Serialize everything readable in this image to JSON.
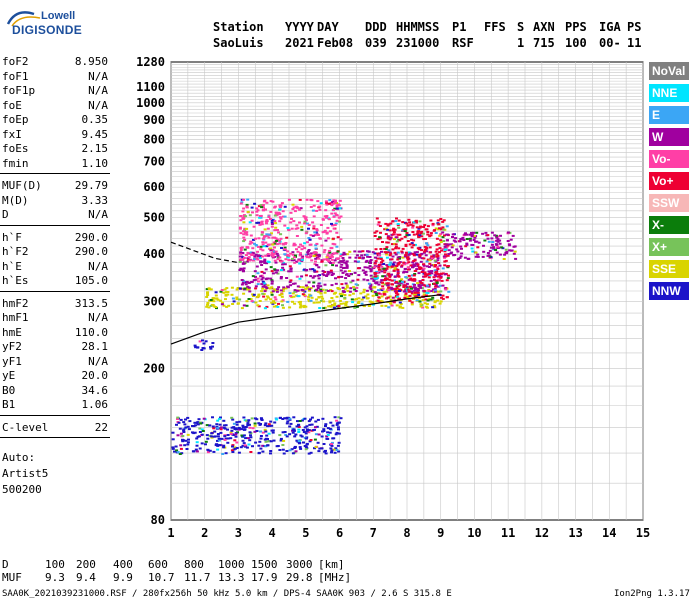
{
  "logo": {
    "line1": "Lowell",
    "line2": "DIGISONDE"
  },
  "header": {
    "labels": [
      "Station",
      "YYYY",
      "DAY",
      "DDD",
      "HHMMSS",
      "P1",
      "FFS",
      "S",
      "AXN",
      "PPS",
      "IGA",
      "PS"
    ],
    "values": [
      "SaoLuis",
      "2021",
      "Feb08",
      "039",
      "231000",
      "RSF",
      "1",
      "715",
      "100",
      "00-",
      "11"
    ]
  },
  "params": {
    "group1": [
      {
        "label": "foF2",
        "value": "8.950"
      },
      {
        "label": "foF1",
        "value": "N/A"
      },
      {
        "label": "foF1p",
        "value": "N/A"
      },
      {
        "label": "foE",
        "value": "N/A"
      },
      {
        "label": "foEp",
        "value": "0.35"
      },
      {
        "label": "fxI",
        "value": "9.45"
      },
      {
        "label": "foEs",
        "value": "2.15"
      },
      {
        "label": "fmin",
        "value": "1.10"
      }
    ],
    "group2": [
      {
        "label": "MUF(D)",
        "value": "29.79"
      },
      {
        "label": "M(D)",
        "value": "3.33"
      },
      {
        "label": "D",
        "value": "N/A"
      }
    ],
    "group3": [
      {
        "label": "h`F",
        "value": "290.0"
      },
      {
        "label": "h`F2",
        "value": "290.0"
      },
      {
        "label": "h`E",
        "value": "N/A"
      },
      {
        "label": "h`Es",
        "value": "105.0"
      }
    ],
    "group4": [
      {
        "label": "hmF2",
        "value": "313.5"
      },
      {
        "label": "hmF1",
        "value": "N/A"
      },
      {
        "label": "hmE",
        "value": "110.0"
      },
      {
        "label": "yF2",
        "value": "28.1"
      },
      {
        "label": "yF1",
        "value": "N/A"
      },
      {
        "label": "yE",
        "value": "20.0"
      },
      {
        "label": "B0",
        "value": "34.6"
      },
      {
        "label": "B1",
        "value": "1.06"
      }
    ],
    "group5": [
      {
        "label": "C-level",
        "value": "22"
      }
    ],
    "auto": [
      "Auto:",
      "Artist5",
      "500200"
    ]
  },
  "legend": [
    {
      "label": "NoVal",
      "bg": "#808080",
      "fg": "#ffffff"
    },
    {
      "label": "NNE",
      "bg": "#00e5ff",
      "fg": "#ffffff"
    },
    {
      "label": "E",
      "bg": "#3ba6f5",
      "fg": "#ffffff"
    },
    {
      "label": "W",
      "bg": "#a0009f",
      "fg": "#ffffff"
    },
    {
      "label": "Vo-",
      "bg": "#ff3fa6",
      "fg": "#ffffff"
    },
    {
      "label": "Vo+",
      "bg": "#ee0033",
      "fg": "#ffffff"
    },
    {
      "label": "SSW",
      "bg": "#f7b7b7",
      "fg": "#ffffff"
    },
    {
      "label": "X-",
      "bg": "#0b7d0b",
      "fg": "#ffffff"
    },
    {
      "label": "X+",
      "bg": "#77c35a",
      "fg": "#ffffff"
    },
    {
      "label": "SSE",
      "bg": "#d9d400",
      "fg": "#ffffff"
    },
    {
      "label": "NNW",
      "bg": "#1c14c9",
      "fg": "#ffffff"
    }
  ],
  "muf_table": {
    "d_label": "D",
    "d_values": [
      "100",
      "200",
      "400",
      "600",
      "800",
      "1000",
      "1500",
      "3000"
    ],
    "d_unit": "[km]",
    "m_label": "MUF",
    "m_values": [
      "9.3",
      "9.4",
      "9.9",
      "10.7",
      "11.7",
      "13.3",
      "17.9",
      "29.8"
    ],
    "m_unit": "[MHz]"
  },
  "footer": {
    "left": "SAA0K_2021039231000.RSF / 280fx256h 50 kHz 5.0 km / DPS-4 SAA0K 903 / 2.6 S 315.8 E",
    "right": "Ion2Png 1.3.17"
  },
  "chart_data": {
    "type": "scatter",
    "title": "",
    "xlabel": "",
    "ylabel": "",
    "xlim": [
      1,
      15
    ],
    "ylim": [
      80,
      1280
    ],
    "x_ticks": [
      1,
      2,
      3,
      4,
      5,
      6,
      7,
      8,
      9,
      10,
      11,
      12,
      13,
      14,
      15
    ],
    "y_ticks": [
      80,
      200,
      300,
      400,
      500,
      600,
      700,
      800,
      900,
      1000,
      1100,
      1280
    ],
    "grid": true,
    "y_scale": "log",
    "series": [
      {
        "name": "",
        "style": "solid-black",
        "points": [
          [
            1.0,
            232
          ],
          [
            2.0,
            250
          ],
          [
            3.0,
            265
          ],
          [
            4.0,
            273
          ],
          [
            5.0,
            280
          ],
          [
            6.0,
            288
          ],
          [
            7.0,
            296
          ],
          [
            8.0,
            305
          ],
          [
            9.0,
            313
          ]
        ]
      },
      {
        "name": "",
        "style": "dashed-black",
        "points": [
          [
            1.0,
            430
          ],
          [
            1.7,
            408
          ],
          [
            2.3,
            390
          ],
          [
            3.0,
            380
          ]
        ]
      }
    ],
    "echo_regions": [
      {
        "x": [
          2.0,
          9.0
        ],
        "y": [
          290,
          330
        ],
        "color": "#d9d400"
      },
      {
        "x": [
          3.0,
          9.0
        ],
        "y": [
          320,
          410
        ],
        "color": "#a0009f"
      },
      {
        "x": [
          7.0,
          9.2
        ],
        "y": [
          300,
          500
        ],
        "color": "#ee0033"
      },
      {
        "x": [
          3.0,
          6.0
        ],
        "y": [
          380,
          560
        ],
        "color": "#ff3fa6"
      },
      {
        "x": [
          9.0,
          11.2
        ],
        "y": [
          390,
          460
        ],
        "color": "#a0009f"
      },
      {
        "x": [
          1.0,
          6.0
        ],
        "y": [
          120,
          150
        ],
        "color": "#1c14c9"
      },
      {
        "x": [
          1.6,
          2.2
        ],
        "y": [
          225,
          240
        ],
        "color": "#1c14c9"
      }
    ]
  }
}
